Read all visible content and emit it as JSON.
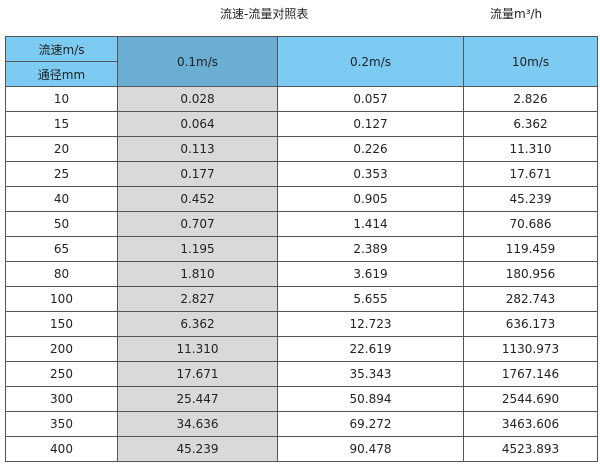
{
  "title": "流速-流量对照表",
  "unit": "流量m³/h",
  "header": {
    "speed_label": "流速m/s",
    "diameter_label": "通径mm",
    "columns": [
      "0.1m/s",
      "0.2m/s",
      "10m/s"
    ]
  },
  "rows": [
    [
      "10",
      "0.028",
      "0.057",
      "2.826"
    ],
    [
      "15",
      "0.064",
      "0.127",
      "6.362"
    ],
    [
      "20",
      "0.113",
      "0.226",
      "11.310"
    ],
    [
      "25",
      "0.177",
      "0.353",
      "17.671"
    ],
    [
      "40",
      "0.452",
      "0.905",
      "45.239"
    ],
    [
      "50",
      "0.707",
      "1.414",
      "70.686"
    ],
    [
      "65",
      "1.195",
      "2.389",
      "119.459"
    ],
    [
      "80",
      "1.810",
      "3.619",
      "180.956"
    ],
    [
      "100",
      "2.827",
      "5.655",
      "282.743"
    ],
    [
      "150",
      "6.362",
      "12.723",
      "636.173"
    ],
    [
      "200",
      "11.310",
      "22.619",
      "1130.973"
    ],
    [
      "250",
      "17.671",
      "35.343",
      "1767.146"
    ],
    [
      "300",
      "25.447",
      "50.894",
      "2544.690"
    ],
    [
      "350",
      "34.636",
      "69.272",
      "3463.606"
    ],
    [
      "400",
      "45.239",
      "90.478",
      "4523.893"
    ]
  ]
}
